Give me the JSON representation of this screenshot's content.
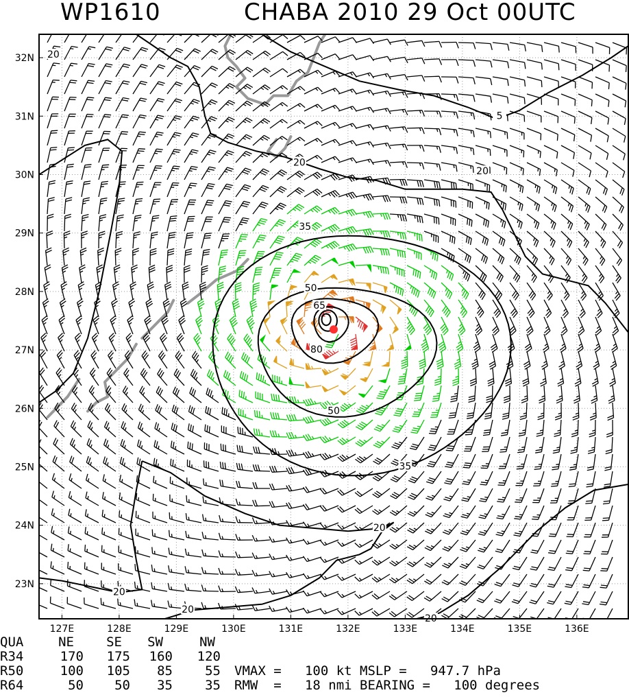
{
  "title": {
    "storm_id": "WP1610",
    "name_time": "CHABA 2010 29 Oct 00UTC"
  },
  "map": {
    "lon_range": [
      126.6,
      136.9
    ],
    "lat_range": [
      22.4,
      32.4
    ],
    "lon_ticks": [
      {
        "value": 127,
        "label": "127E"
      },
      {
        "value": 128,
        "label": "128E"
      },
      {
        "value": 129,
        "label": "129E"
      },
      {
        "value": 130,
        "label": "130E"
      },
      {
        "value": 131,
        "label": "131E"
      },
      {
        "value": 132,
        "label": "132E"
      },
      {
        "value": 133,
        "label": "133E"
      },
      {
        "value": 134,
        "label": "134E"
      },
      {
        "value": 135,
        "label": "135E"
      },
      {
        "value": 136,
        "label": "136E"
      }
    ],
    "lat_ticks": [
      {
        "value": 23,
        "label": "23N"
      },
      {
        "value": 24,
        "label": "24N"
      },
      {
        "value": 25,
        "label": "25N"
      },
      {
        "value": 26,
        "label": "26N"
      },
      {
        "value": 27,
        "label": "27N"
      },
      {
        "value": 28,
        "label": "28N"
      },
      {
        "value": 29,
        "label": "29N"
      },
      {
        "value": 30,
        "label": "30N"
      },
      {
        "value": 31,
        "label": "31N"
      },
      {
        "value": 32,
        "label": "32N"
      }
    ],
    "grid": "dotted",
    "storm_center": {
      "lon": 131.75,
      "lat": 27.35
    },
    "contour_labels": [
      {
        "text": "20",
        "lon": 126.85,
        "lat": 32.05
      },
      {
        "text": "20",
        "lon": 131.15,
        "lat": 30.2
      },
      {
        "text": "20",
        "lon": 134.35,
        "lat": 30.05
      },
      {
        "text": "5",
        "lon": 134.65,
        "lat": 31.0
      },
      {
        "text": "35",
        "lon": 131.25,
        "lat": 29.1
      },
      {
        "text": "50",
        "lon": 131.35,
        "lat": 28.05
      },
      {
        "text": "65",
        "lon": 131.5,
        "lat": 27.75
      },
      {
        "text": "80",
        "lon": 131.45,
        "lat": 27.0
      },
      {
        "text": "50",
        "lon": 131.75,
        "lat": 25.95
      },
      {
        "text": "35",
        "lon": 133.0,
        "lat": 25.0
      },
      {
        "text": "20",
        "lon": 132.55,
        "lat": 23.95
      },
      {
        "text": "20",
        "lon": 128.0,
        "lat": 22.85
      },
      {
        "text": "20",
        "lon": 129.2,
        "lat": 22.55
      },
      {
        "text": "20",
        "lon": 133.45,
        "lat": 22.4
      }
    ],
    "colors": {
      "below_34kt": "#000000",
      "34_to_49kt": "#00cc00",
      "50_to_63kt": "#e0a020",
      "64_to_79kt": "#e07a20",
      "80kt_plus": "#e03030",
      "land": "#999999",
      "center": "#ff3030"
    }
  },
  "table": {
    "headers": [
      "QUA",
      "NE",
      "SE",
      "SW",
      "NW"
    ],
    "rows": [
      {
        "label": "R34",
        "values": [
          "170",
          "175",
          "160",
          "120"
        ]
      },
      {
        "label": "R50",
        "values": [
          "100",
          "105",
          "85",
          "55"
        ]
      },
      {
        "label": "R64",
        "values": [
          "50",
          "50",
          "35",
          "35"
        ]
      }
    ]
  },
  "stats": {
    "line1": "VMAX =   100 kt MSLP =   947.7 hPa",
    "line2": "RMW  =   18 nmi BEARING =   100 degrees"
  }
}
